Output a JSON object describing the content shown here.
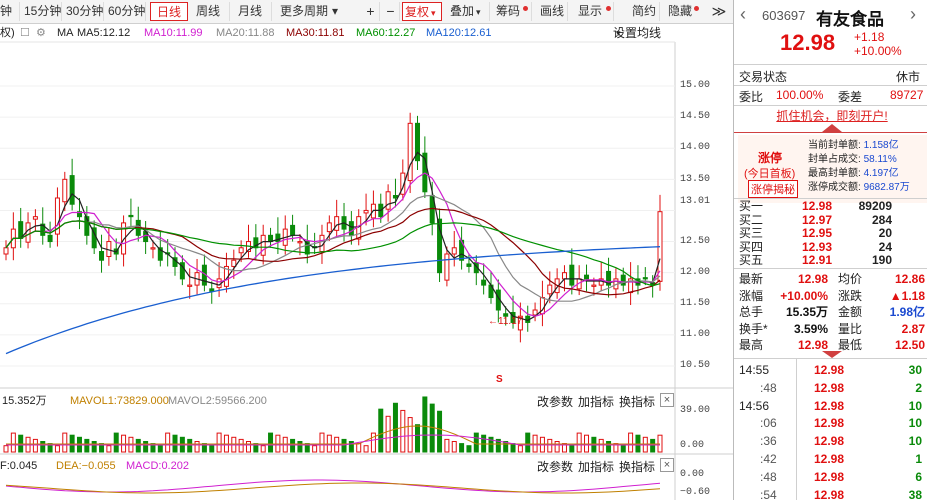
{
  "toolbar": {
    "items": [
      "钟",
      "15分钟",
      "30分钟",
      "60分钟",
      "日线",
      "周线",
      "月线",
      "更多周期"
    ],
    "dropdown_arrow": "▾",
    "plus": "+",
    "minus": "−",
    "fuquan": "复权",
    "diejia": "叠加",
    "chouma": "筹码",
    "huaxian": "画线",
    "xianshi": "显示",
    "jianyue": "简约",
    "yincang": "隐藏",
    "collapse": "≫"
  },
  "ma_bar": {
    "prefix": "权)",
    "ma": "MA",
    "ma5": "MA5:12.12",
    "ma10": "MA10:11.99",
    "ma20": "MA20:11.88",
    "ma30": "MA30:11.81",
    "ma60": "MA60:12.27",
    "ma120": "MA120:12.61",
    "settings": "设置均线"
  },
  "price_axis": [
    "15.00",
    "14.50",
    "14.00",
    "13.50",
    "13.01",
    "12.50",
    "12.00",
    "11.50",
    "11.00",
    "10.50"
  ],
  "annotations": {
    "low_label": "←11.17",
    "s_marker": "S"
  },
  "vol_panel": {
    "vol": "15.352万",
    "mavol1": "MAVOL1:73829.000",
    "mavol2": "MAVOL2:59566.200",
    "change_params": "改参数",
    "add_indicator": "加指标",
    "switch_indicator": "换指标",
    "close": "×",
    "axis": [
      "39.00",
      "0.00"
    ]
  },
  "macd_panel": {
    "dif": "F:0.045",
    "dea": "DEA:−0.055",
    "macd": "MACD:0.202",
    "change_params": "改参数",
    "add_indicator": "加指标",
    "switch_indicator": "换指标",
    "close": "×",
    "axis": [
      "0.00",
      "−0.60"
    ]
  },
  "quote": {
    "back": "‹",
    "code": "603697",
    "name": "有友食品",
    "price": "12.98",
    "change": "+1.18",
    "pct": "+10.00%",
    "trade_status_label": "交易状态",
    "trade_status": "休市",
    "weibi_label": "委比",
    "weibi": "100.00%",
    "weicha_label": "委差",
    "weicha": "89727",
    "promo": "抓住机会，即刻开户!",
    "limit_up": "涨停",
    "first_board": "(今日首板)",
    "reveal": "涨停揭秘",
    "seal": [
      {
        "label": "当前封单额:",
        "value": "1.158亿"
      },
      {
        "label": "封单占成交:",
        "value": "58.11%"
      },
      {
        "label": "最高封单额:",
        "value": "4.197亿"
      },
      {
        "label": "涨停成交额:",
        "value": "9682.87万"
      }
    ],
    "bids": [
      {
        "label": "买一",
        "price": "12.98",
        "vol": "89209"
      },
      {
        "label": "买二",
        "price": "12.97",
        "vol": "284"
      },
      {
        "label": "买三",
        "price": "12.95",
        "vol": "20"
      },
      {
        "label": "买四",
        "price": "12.93",
        "vol": "24"
      },
      {
        "label": "买五",
        "price": "12.91",
        "vol": "190"
      }
    ],
    "stats": [
      {
        "l1": "最新",
        "v1": "12.98",
        "l2": "均价",
        "v2": "12.86",
        "c1": "red",
        "c2": "red"
      },
      {
        "l1": "涨幅",
        "v1": "+10.00%",
        "l2": "涨跌",
        "v2": "▲1.18",
        "c1": "red",
        "c2": "red"
      },
      {
        "l1": "总手",
        "v1": "15.35万",
        "l2": "金额",
        "v2": "1.98亿",
        "c1": "dark",
        "c2": "blue"
      },
      {
        "l1": "换手*",
        "v1": "3.59%",
        "l2": "量比",
        "v2": "2.87",
        "c1": "dark",
        "c2": "red"
      },
      {
        "l1": "最高",
        "v1": "12.98",
        "l2": "最低",
        "v2": "12.50",
        "c1": "red",
        "c2": "red"
      }
    ],
    "ticks": [
      {
        "time": "14:55",
        "price": "12.98",
        "vol": "30"
      },
      {
        "time": ":48",
        "price": "12.98",
        "vol": "2"
      },
      {
        "time": "14:56",
        "price": "12.98",
        "vol": "10"
      },
      {
        "time": ":06",
        "price": "12.98",
        "vol": "10"
      },
      {
        "time": ":36",
        "price": "12.98",
        "vol": "10"
      },
      {
        "time": ":42",
        "price": "12.98",
        "vol": "1"
      },
      {
        "time": ":48",
        "price": "12.98",
        "vol": "6"
      },
      {
        "time": ":54",
        "price": "12.98",
        "vol": "38"
      }
    ]
  },
  "colors": {
    "up": "#e01010",
    "down": "#0a8a0a",
    "ma5": "#222222",
    "ma10": "#d020d0",
    "ma20": "#888888",
    "ma30": "#8b0000",
    "ma60": "#009000",
    "ma120": "#1a5fd0"
  }
}
